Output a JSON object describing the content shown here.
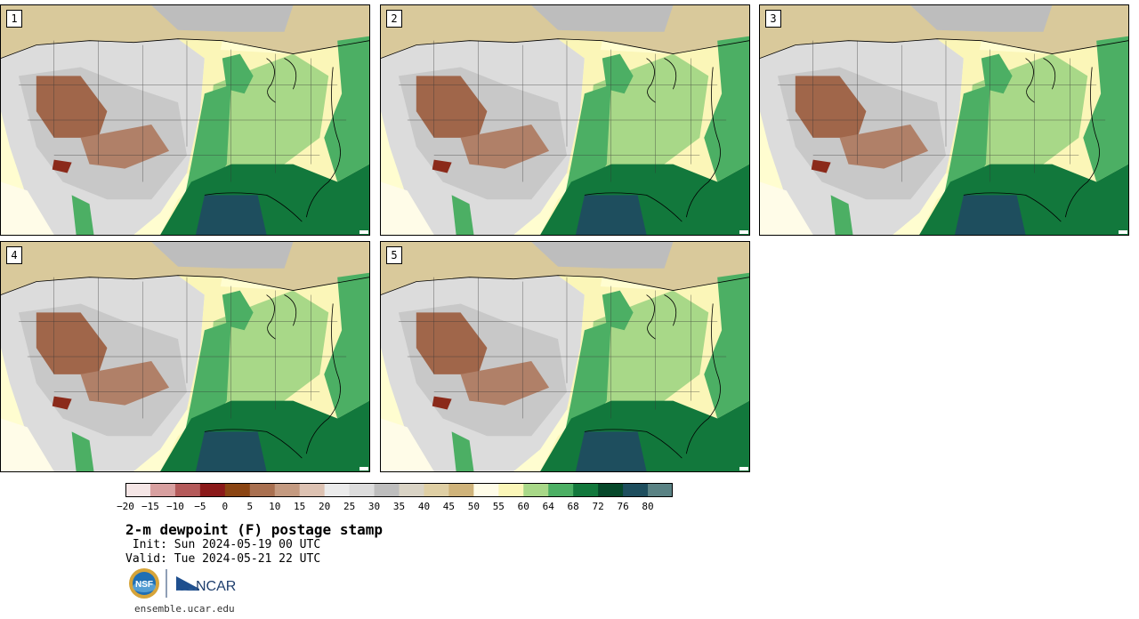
{
  "panels": [
    {
      "label": "1"
    },
    {
      "label": "2"
    },
    {
      "label": "3"
    },
    {
      "label": "4"
    },
    {
      "label": "5"
    }
  ],
  "colorbar": {
    "colors": [
      "#f5e6e6",
      "#d8a0a0",
      "#b45a5a",
      "#8b1a1a",
      "#8b4513",
      "#a97050",
      "#c49a80",
      "#ddc2b2",
      "#ebebeb",
      "#dcdcdc",
      "#bdbdbd",
      "#d9d3c5",
      "#dfcfa4",
      "#cfb37a",
      "#fffce8",
      "#fbf6b8",
      "#a8d888",
      "#4caf64",
      "#12783c",
      "#06482a",
      "#1e4e5e",
      "#5a8284"
    ],
    "tick_labels": [
      "−20",
      "−15",
      "−10",
      "−5",
      "0",
      "5",
      "10",
      "15",
      "20",
      "25",
      "30",
      "35",
      "40",
      "45",
      "50",
      "55",
      "60",
      "64",
      "68",
      "72",
      "76",
      "80"
    ]
  },
  "title": "2-m dewpoint (F) postage stamp",
  "init": " Init: Sun 2024-05-19 00 UTC",
  "valid": "Valid: Tue 2024-05-21 22 UTC",
  "logos": {
    "nsf": "NSF",
    "ncar": "NCAR"
  },
  "url": "ensemble.ucar.edu"
}
